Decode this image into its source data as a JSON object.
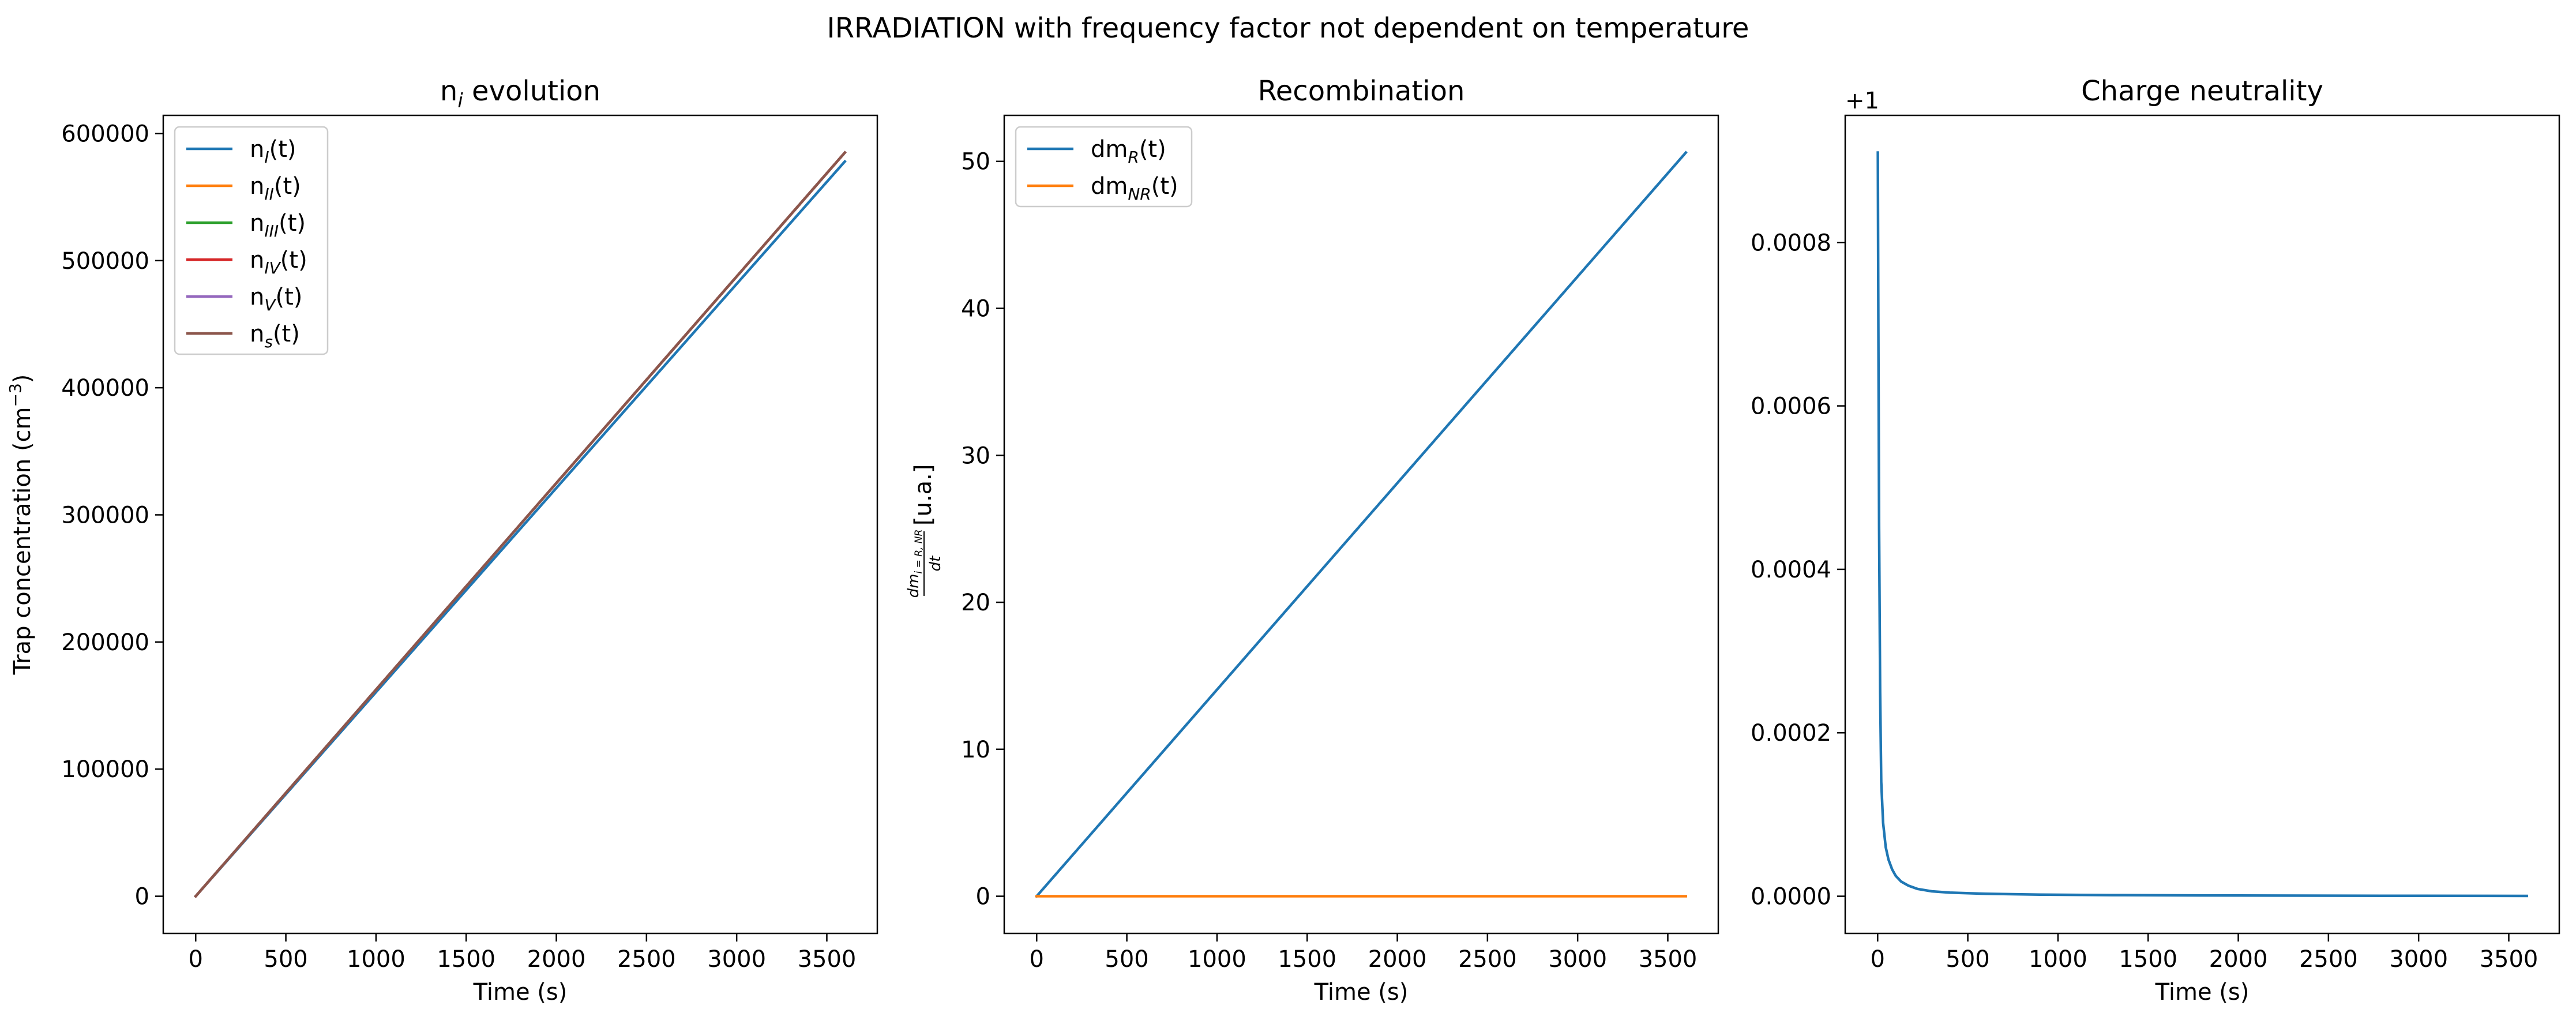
{
  "figure": {
    "suptitle": "IRRADIATION with frequency factor not dependent on temperature"
  },
  "chart_data": [
    {
      "type": "line",
      "title": {
        "base": "n",
        "sub": "i",
        "rest": " evolution"
      },
      "xlabel": "Time (s)",
      "ylabel": {
        "base": "Trap concentration (cm",
        "sup": "−3",
        "rest": ")"
      },
      "xlim": [
        -180,
        3780
      ],
      "ylim": [
        -29250,
        614250
      ],
      "xticks": [
        0,
        500,
        1000,
        1500,
        2000,
        2500,
        3000,
        3500
      ],
      "yticks": [
        0,
        100000,
        200000,
        300000,
        400000,
        500000,
        600000
      ],
      "ytick_labels": [
        "0",
        "100000",
        "200000",
        "300000",
        "400000",
        "500000",
        "600000"
      ],
      "legend": "upper left",
      "series": [
        {
          "label_base": "n",
          "label_sub": "I",
          "label_rest": "(t)",
          "color": "#1f77b4",
          "x": [
            0,
            3600
          ],
          "y": [
            0,
            578000
          ]
        },
        {
          "label_base": "n",
          "label_sub": "II",
          "label_rest": "(t)",
          "color": "#ff7f0e",
          "x": [
            0,
            3600
          ],
          "y": [
            0,
            585000
          ]
        },
        {
          "label_base": "n",
          "label_sub": "III",
          "label_rest": "(t)",
          "color": "#2ca02c",
          "x": [
            0,
            3600
          ],
          "y": [
            0,
            585000
          ]
        },
        {
          "label_base": "n",
          "label_sub": "IV",
          "label_rest": "(t)",
          "color": "#d62728",
          "x": [
            0,
            3600
          ],
          "y": [
            0,
            585000
          ]
        },
        {
          "label_base": "n",
          "label_sub": "V",
          "label_rest": "(t)",
          "color": "#9467bd",
          "x": [
            0,
            3600
          ],
          "y": [
            0,
            585000
          ]
        },
        {
          "label_base": "n",
          "label_sub": "s",
          "label_rest": "(t)",
          "color": "#8c564b",
          "x": [
            0,
            3600
          ],
          "y": [
            0,
            585000
          ]
        }
      ]
    },
    {
      "type": "line",
      "title": {
        "base": "Recombination",
        "sub": "",
        "rest": ""
      },
      "xlabel": "Time (s)",
      "ylabel_fraction": {
        "num": "dm",
        "num_sub": "i = R, NR",
        "den": "dt",
        "rest": "[u.a.]"
      },
      "xlim": [
        -180,
        3780
      ],
      "ylim": [
        -2.53,
        53.13
      ],
      "xticks": [
        0,
        500,
        1000,
        1500,
        2000,
        2500,
        3000,
        3500
      ],
      "yticks": [
        0,
        10,
        20,
        30,
        40,
        50
      ],
      "ytick_labels": [
        "0",
        "10",
        "20",
        "30",
        "40",
        "50"
      ],
      "legend": "upper left",
      "series": [
        {
          "label_base": "dm",
          "label_sub": "R",
          "label_rest": "(t)",
          "color": "#1f77b4",
          "x": [
            0,
            3600
          ],
          "y": [
            0,
            50.6
          ]
        },
        {
          "label_base": "dm",
          "label_sub": "NR",
          "label_rest": "(t)",
          "color": "#ff7f0e",
          "x": [
            0,
            3600
          ],
          "y": [
            0,
            0
          ]
        }
      ]
    },
    {
      "type": "line",
      "title": {
        "base": "Charge neutrality",
        "sub": "",
        "rest": ""
      },
      "xlabel": "Time (s)",
      "offset_label": "+1",
      "xlim": [
        -180,
        3780
      ],
      "ylim": [
        -4.55e-05,
        0.0009555
      ],
      "xticks": [
        0,
        500,
        1000,
        1500,
        2000,
        2500,
        3000,
        3500
      ],
      "yticks": [
        0,
        0.0002,
        0.0004,
        0.0006,
        0.0008
      ],
      "ytick_labels": [
        "0.0000",
        "0.0002",
        "0.0004",
        "0.0006",
        "0.0008"
      ],
      "legend": "none",
      "series": [
        {
          "color": "#1f77b4",
          "x": [
            1,
            4,
            8,
            14,
            20,
            30,
            45,
            60,
            80,
            100,
            130,
            170,
            220,
            300,
            400,
            600,
            900,
            1300,
            2000,
            2800,
            3600
          ],
          "y": [
            0.00091,
            0.0007,
            0.00045,
            0.00025,
            0.00014,
            9e-05,
            6e-05,
            4.5e-05,
            3.3e-05,
            2.5e-05,
            1.8e-05,
            1.3e-05,
            9e-06,
            6e-06,
            4.5e-06,
            3e-06,
            2e-06,
            1.4e-06,
            9e-07,
            6e-07,
            4e-07
          ]
        }
      ]
    }
  ]
}
